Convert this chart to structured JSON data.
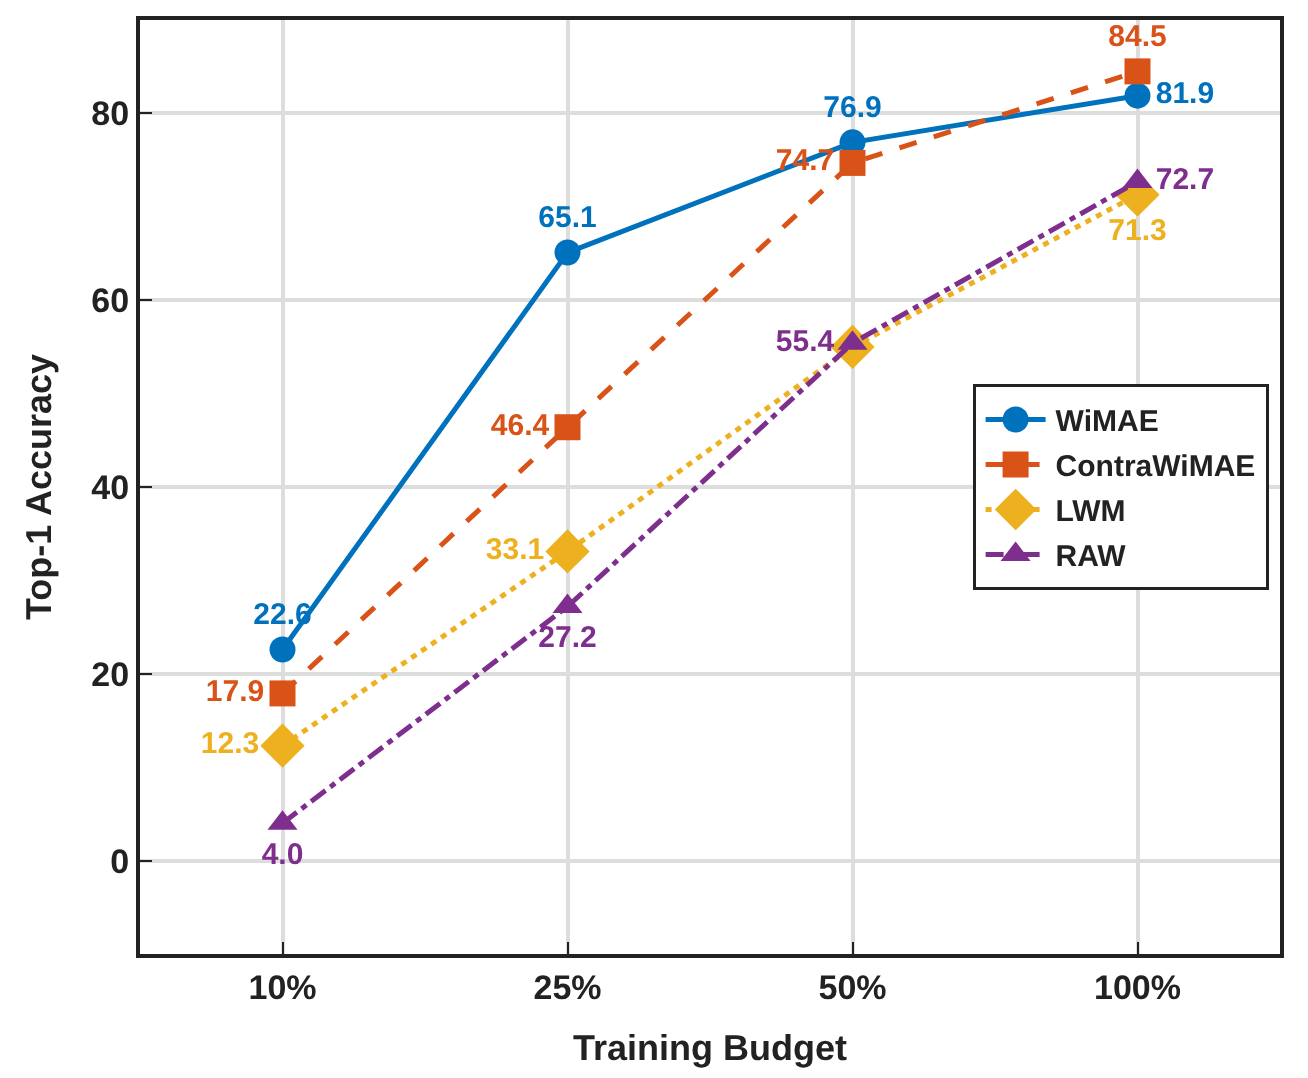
{
  "chart_data": {
    "type": "line",
    "xlabel": "Training Budget",
    "ylabel": "Top-1 Accuracy",
    "categories": [
      "10%",
      "25%",
      "50%",
      "100%"
    ],
    "series": [
      {
        "name": "WiMAE",
        "color": "#0072bd",
        "marker": "circle",
        "line_style": "solid",
        "values": [
          22.6,
          65.1,
          76.9,
          81.9
        ],
        "value_labels": [
          "22.6",
          "65.1",
          "76.9",
          "81.9"
        ]
      },
      {
        "name": "ContraWiMAE",
        "color": "#d95319",
        "marker": "square",
        "line_style": "dashed",
        "values": [
          17.9,
          46.4,
          74.7,
          84.5
        ],
        "value_labels": [
          "17.9",
          "46.4",
          "74.7",
          "84.5"
        ]
      },
      {
        "name": "LWM",
        "color": "#edb120",
        "marker": "diamond",
        "line_style": "dotted",
        "values": [
          12.3,
          33.1,
          55.0,
          71.3
        ],
        "value_labels": [
          "12.3",
          "33.1",
          null,
          "71.3"
        ]
      },
      {
        "name": "RAW",
        "color": "#7e2f8e",
        "marker": "triangle",
        "line_style": "dashdot",
        "values": [
          4.0,
          27.2,
          55.4,
          72.7
        ],
        "value_labels": [
          "4.0",
          "27.2",
          "55.4",
          "72.7"
        ]
      }
    ],
    "ylim": [
      -10,
      90
    ],
    "yticks": [
      0,
      20,
      40,
      60,
      80
    ],
    "grid": true,
    "legend": "right"
  }
}
